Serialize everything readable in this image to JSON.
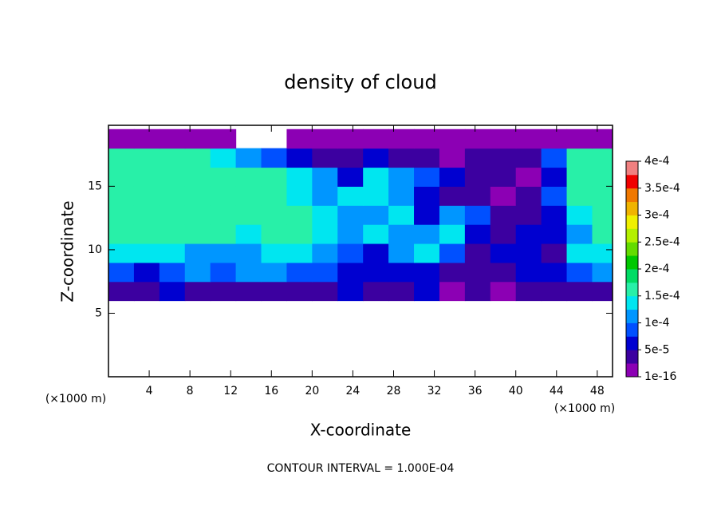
{
  "chart_data": {
    "type": "contour",
    "title": "density of cloud",
    "x_label": "X-coordinate",
    "y_label": "Z-coordinate",
    "x_unit": "(×1000 m)",
    "annotation": "CONTOUR INTERVAL = 1.000E-04",
    "xlim": [
      0,
      49.5
    ],
    "ylim": [
      0,
      19.8
    ],
    "xticks": [
      4,
      8,
      12,
      16,
      20,
      24,
      28,
      32,
      36,
      40,
      44,
      48
    ],
    "yticks": [
      5,
      10,
      15
    ],
    "levels": [
      1e-16,
      2.5e-05,
      5e-05,
      7.5e-05,
      0.0001,
      0.000125,
      0.00015,
      0.000175,
      0.0002,
      0.000225,
      0.00025,
      0.000275,
      0.0003,
      0.000325,
      0.00035,
      0.000375,
      0.0004
    ],
    "colors": [
      "#8c00b4",
      "#3c00a0",
      "#0000d0",
      "#0050ff",
      "#0096ff",
      "#00e6f0",
      "#28f0a8",
      "#00dc64",
      "#00c800",
      "#64dc00",
      "#b4f000",
      "#f0f000",
      "#f0b400",
      "#f07800",
      "#f00000",
      "#f08080"
    ],
    "colorbar_ticks": [
      {
        "value": 1e-16,
        "label": "1e-16"
      },
      {
        "value": 5e-05,
        "label": "5e-5"
      },
      {
        "value": 0.0001,
        "label": "1e-4"
      },
      {
        "value": 0.00015,
        "label": "1.5e-4"
      },
      {
        "value": 0.0002,
        "label": "2e-4"
      },
      {
        "value": 0.00025,
        "label": "2.5e-4"
      },
      {
        "value": 0.0003,
        "label": "3e-4"
      },
      {
        "value": 0.00035,
        "label": "3.5e-4"
      },
      {
        "value": 0.0004,
        "label": "4e-4"
      }
    ],
    "field": {
      "x": [
        1.25,
        3.75,
        6.25,
        8.75,
        11.25,
        13.75,
        16.25,
        18.75,
        21.25,
        23.75,
        26.25,
        28.75,
        31.25,
        33.75,
        36.25,
        38.75,
        41.25,
        43.75,
        46.25,
        48.75
      ],
      "y": [
        6.75,
        8.25,
        9.75,
        11.25,
        12.75,
        14.25,
        15.75,
        17.25,
        18.75
      ],
      "values": [
        [
          3.5e-05,
          3.5e-05,
          6e-05,
          3.5e-05,
          3.5e-05,
          3.5e-05,
          3.5e-05,
          3.5e-05,
          3.5e-05,
          6e-05,
          3.5e-05,
          3.5e-05,
          6e-05,
          1e-05,
          3.5e-05,
          1e-05,
          3.5e-05,
          3.5e-05,
          3.5e-05,
          3.5e-05
        ],
        [
          8.5e-05,
          6e-05,
          8.5e-05,
          0.00011,
          8.5e-05,
          0.00011,
          0.00011,
          8.5e-05,
          8.5e-05,
          6e-05,
          6e-05,
          6e-05,
          6e-05,
          3.5e-05,
          3.5e-05,
          3.5e-05,
          6e-05,
          6e-05,
          8.5e-05,
          0.00011
        ],
        [
          0.000135,
          0.000135,
          0.000135,
          0.00011,
          0.00011,
          0.00011,
          0.000135,
          0.000135,
          0.00011,
          8.5e-05,
          6e-05,
          0.00011,
          0.000135,
          8.5e-05,
          3.5e-05,
          6e-05,
          6e-05,
          3.5e-05,
          0.000135,
          0.000135
        ],
        [
          0.00016,
          0.00016,
          0.00016,
          0.00016,
          0.00016,
          0.000135,
          0.00016,
          0.00016,
          0.000135,
          0.00011,
          0.000135,
          0.00011,
          0.00011,
          0.000135,
          6e-05,
          3.5e-05,
          6e-05,
          6e-05,
          0.00011,
          0.00016
        ],
        [
          0.00016,
          0.00016,
          0.00016,
          0.00016,
          0.00016,
          0.00016,
          0.00016,
          0.00016,
          0.000135,
          0.00011,
          0.00011,
          0.000135,
          6e-05,
          0.00011,
          8.5e-05,
          3.5e-05,
          3.5e-05,
          6e-05,
          0.000135,
          0.00016
        ],
        [
          0.00016,
          0.00016,
          0.00016,
          0.00016,
          0.00016,
          0.00016,
          0.00016,
          0.000135,
          0.00011,
          0.000135,
          0.000135,
          0.00011,
          6e-05,
          3.5e-05,
          3.5e-05,
          1e-05,
          3.5e-05,
          8.5e-05,
          0.00016,
          0.00016
        ],
        [
          0.00016,
          0.00016,
          0.00016,
          0.00016,
          0.00016,
          0.00016,
          0.00016,
          0.000135,
          0.00011,
          6e-05,
          0.000135,
          0.00011,
          8.5e-05,
          6e-05,
          3.5e-05,
          3.5e-05,
          1e-05,
          6e-05,
          0.00016,
          0.00016
        ],
        [
          0.00016,
          0.00016,
          0.00016,
          0.00016,
          0.000135,
          0.00011,
          8.5e-05,
          6e-05,
          3.5e-05,
          3.5e-05,
          6e-05,
          3.5e-05,
          3.5e-05,
          1e-05,
          3.5e-05,
          3.5e-05,
          3.5e-05,
          8.5e-05,
          0.00016,
          0.00016
        ],
        [
          1e-05,
          1e-05,
          1e-05,
          1e-05,
          1e-05,
          null,
          null,
          1e-05,
          1e-05,
          1e-05,
          1e-05,
          1e-05,
          1e-05,
          1e-05,
          1e-05,
          1e-05,
          1e-05,
          1e-05,
          1e-05,
          1e-05
        ]
      ]
    }
  }
}
